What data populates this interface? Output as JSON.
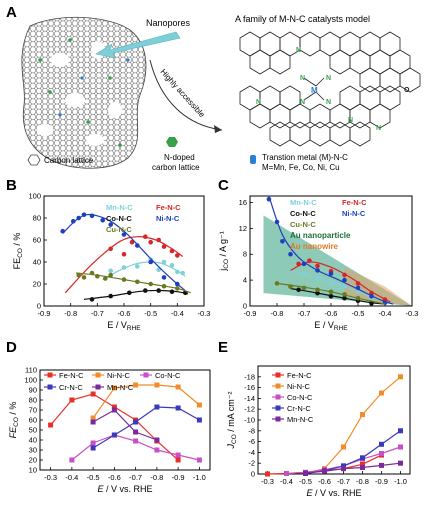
{
  "panel_a": {
    "letter": "A",
    "nanopores_label": "Nanopores",
    "model_title": "A family of M-N-C catalysts model",
    "arrow_label": "Highly accessible",
    "legend_carbon": "Carbon lattice",
    "legend_ndoped_1": "N-doped",
    "legend_ndoped_2": "carbon lattice",
    "legend_metal_1": "Transtion metal (M)-N-C",
    "legend_metal_2": "M=Mn, Fe, Co, Ni, Cu",
    "atom_n": "N",
    "atom_m": "M",
    "atom_o": "O",
    "colors": {
      "nitrogen": "#3aa14a",
      "metal": "#2a7fd0",
      "arrow": "#7ecfd8"
    }
  },
  "chart_data": [
    {
      "panel": "B",
      "type": "scatter",
      "xlabel_main": "E / V",
      "xlabel_sub": "RHE",
      "ylabel_main": "FE",
      "ylabel_sub": "CO",
      "ylabel_unit": " / %",
      "xlim": [
        -0.9,
        -0.3
      ],
      "ylim": [
        0,
        100
      ],
      "xticks": [
        "-0.9",
        "-0.8",
        "-0.7",
        "-0.6",
        "-0.5",
        "-0.4",
        "-0.3"
      ],
      "yticks": [
        "0",
        "20",
        "40",
        "60",
        "80",
        "100"
      ],
      "series": [
        {
          "name": "Mn-N-C",
          "color": "#7fd1d8",
          "x": [
            -0.65,
            -0.6,
            -0.55,
            -0.5,
            -0.47,
            -0.45,
            -0.42,
            -0.4,
            -0.38
          ],
          "y": [
            32,
            35,
            36,
            42,
            33,
            40,
            37,
            31,
            30
          ],
          "fit_x": [
            -0.68,
            -0.62,
            -0.56,
            -0.5,
            -0.45,
            -0.4,
            -0.37
          ],
          "fit_y": [
            24,
            32,
            38,
            40,
            38,
            32,
            27
          ]
        },
        {
          "name": "Fe-N-C",
          "color": "#d62728",
          "x": [
            -0.65,
            -0.6,
            -0.57,
            -0.52,
            -0.5,
            -0.47,
            -0.45,
            -0.42,
            -0.4
          ],
          "y": [
            52,
            47,
            58,
            63,
            58,
            60,
            54,
            50,
            46
          ],
          "fit_x": [
            -0.82,
            -0.72,
            -0.62,
            -0.55,
            -0.48,
            -0.42,
            -0.38
          ],
          "fit_y": [
            12,
            38,
            58,
            63,
            60,
            52,
            45
          ]
        },
        {
          "name": "Co-N-C",
          "color": "#111111",
          "x": [
            -0.72,
            -0.65,
            -0.58,
            -0.52,
            -0.47,
            -0.42,
            -0.37
          ],
          "y": [
            6,
            9,
            12,
            14,
            14,
            13,
            12
          ],
          "fit_x": [
            -0.75,
            -0.65,
            -0.55,
            -0.5,
            -0.45,
            -0.4,
            -0.36
          ],
          "fit_y": [
            6,
            9,
            13,
            14,
            14,
            13,
            11
          ]
        },
        {
          "name": "Ni-N-C",
          "color": "#1f3fbf",
          "x": [
            -0.83,
            -0.79,
            -0.77,
            -0.75,
            -0.72,
            -0.68,
            -0.65,
            -0.6,
            -0.55,
            -0.5,
            -0.45,
            -0.4
          ],
          "y": [
            68,
            77,
            80,
            83,
            82,
            78,
            74,
            65,
            55,
            40,
            26,
            20
          ],
          "fit_x": [
            -0.83,
            -0.78,
            -0.74,
            -0.7,
            -0.65,
            -0.6,
            -0.55,
            -0.5,
            -0.45,
            -0.4,
            -0.37
          ],
          "fit_y": [
            66,
            78,
            83,
            82,
            77,
            68,
            56,
            43,
            31,
            20,
            14
          ]
        },
        {
          "name": "Cu-N-C",
          "color": "#6b7a1f",
          "x": [
            -0.77,
            -0.75,
            -0.72,
            -0.7,
            -0.67,
            -0.65,
            -0.6,
            -0.55,
            -0.5,
            -0.45,
            -0.4
          ],
          "y": [
            28,
            26,
            30,
            27,
            25,
            28,
            24,
            22,
            20,
            18,
            16
          ],
          "fit_x": [
            -0.78,
            -0.7,
            -0.6,
            -0.5,
            -0.4,
            -0.35
          ],
          "fit_y": [
            30,
            28,
            24,
            20,
            16,
            12
          ]
        }
      ]
    },
    {
      "panel": "C",
      "type": "scatter",
      "xlabel_main": "E / V",
      "xlabel_sub": "RHE",
      "ylabel_main": "j",
      "ylabel_sub": "CO",
      "ylabel_unit": " / A g⁻¹",
      "xlim": [
        -0.9,
        -0.3
      ],
      "ylim": [
        0,
        17
      ],
      "xticks": [
        "-0.9",
        "-0.8",
        "-0.7",
        "-0.6",
        "-0.5",
        "-0.4",
        "-0.3"
      ],
      "yticks": [
        "0",
        "4",
        "8",
        "12",
        "16"
      ],
      "series": [
        {
          "name": "Mn-N-C",
          "color": "#7fd1d8",
          "x": [
            -0.7,
            -0.65,
            -0.6,
            -0.55,
            -0.5,
            -0.45,
            -0.4
          ],
          "y": [
            5,
            4.2,
            3.5,
            3,
            2.2,
            1.2,
            0.6
          ],
          "fit_x": [
            -0.75,
            -0.65,
            -0.55,
            -0.45,
            -0.38
          ],
          "fit_y": [
            5.5,
            4.3,
            3,
            1.4,
            0.4
          ]
        },
        {
          "name": "Fe-N-C",
          "color": "#d62728",
          "x": [
            -0.72,
            -0.68,
            -0.65,
            -0.6,
            -0.55,
            -0.5,
            -0.45,
            -0.4
          ],
          "y": [
            6.5,
            7,
            6.2,
            5.4,
            4.8,
            3.5,
            2,
            1
          ],
          "fit_x": [
            -0.75,
            -0.68,
            -0.6,
            -0.52,
            -0.45,
            -0.38
          ],
          "fit_y": [
            5.5,
            6.8,
            6,
            4.2,
            2.2,
            0.6
          ]
        },
        {
          "name": "Co-N-C",
          "color": "#111111",
          "x": [
            -0.72,
            -0.65,
            -0.6,
            -0.55,
            -0.5,
            -0.45
          ],
          "y": [
            2.5,
            2,
            1.5,
            1.2,
            0.8,
            0.4
          ],
          "fit_x": [
            -0.75,
            -0.65,
            -0.55,
            -0.45,
            -0.4
          ],
          "fit_y": [
            2.7,
            2,
            1.2,
            0.5,
            0.3
          ]
        },
        {
          "name": "Ni-N-C",
          "color": "#1f3fbf",
          "x": [
            -0.83,
            -0.8,
            -0.78,
            -0.75,
            -0.7,
            -0.65,
            -0.6,
            -0.55,
            -0.5,
            -0.45,
            -0.4
          ],
          "y": [
            16.5,
            13,
            10,
            8,
            6.5,
            5.5,
            5,
            4,
            2.8,
            1.5,
            0.5
          ],
          "fit_x": [
            -0.83,
            -0.78,
            -0.72,
            -0.65,
            -0.58,
            -0.5,
            -0.42,
            -0.37
          ],
          "fit_y": [
            17,
            11,
            7.5,
            5.5,
            4.2,
            2.6,
            1,
            0.3
          ]
        },
        {
          "name": "Cu-N-C",
          "color": "#6b7a1f",
          "x": [
            -0.8,
            -0.75,
            -0.7,
            -0.65,
            -0.6,
            -0.55,
            -0.5
          ],
          "y": [
            3.5,
            3,
            2.8,
            2.5,
            2.2,
            1.8,
            1.2
          ],
          "fit_x": [
            -0.8,
            -0.7,
            -0.6,
            -0.5,
            -0.4
          ],
          "fit_y": [
            3.5,
            2.9,
            2.2,
            1.2,
            0.3
          ]
        }
      ],
      "bands": [
        {
          "name": "Au nanoparticle",
          "color": "#2f9e7e",
          "upper_x": [
            -0.85,
            -0.3
          ],
          "upper_y": [
            14,
            0
          ],
          "lower_x": [
            -0.85,
            -0.3
          ],
          "lower_y": [
            2,
            0
          ]
        },
        {
          "name": "Au nanowire",
          "color": "#e5a36a",
          "upper_x": [
            -0.55,
            -0.4,
            -0.3
          ],
          "upper_y": [
            6,
            3,
            0
          ],
          "lower_x": [
            -0.55,
            -0.4,
            -0.3
          ],
          "lower_y": [
            1.5,
            0.5,
            0
          ]
        }
      ]
    },
    {
      "panel": "D",
      "type": "line",
      "xlabel_italic": "E",
      "xlabel_rest": " / V vs. RHE",
      "ylabel_italic": "FE",
      "ylabel_sub": "CO",
      "ylabel_unit": " / %",
      "xlim": [
        -1.05,
        -0.25
      ],
      "ylim": [
        10,
        110
      ],
      "reversed_x": true,
      "xticks": [
        "-0.3",
        "-0.4",
        "-0.5",
        "-0.6",
        "-0.7",
        "-0.8",
        "-0.9",
        "-1.0"
      ],
      "yticks": [
        "10",
        "20",
        "30",
        "40",
        "50",
        "60",
        "70",
        "80",
        "90",
        "100",
        "110"
      ],
      "series": [
        {
          "name": "Fe-N-C",
          "color": "#e8302a",
          "x": [
            -0.3,
            -0.4,
            -0.5,
            -0.6,
            -0.7,
            -0.8,
            -0.9
          ],
          "y": [
            55,
            80,
            86,
            73,
            60,
            39,
            20
          ]
        },
        {
          "name": "Ni-N-C",
          "color": "#f28c28",
          "x": [
            -0.5,
            -0.6,
            -0.7,
            -0.8,
            -0.9,
            -1.0
          ],
          "y": [
            62,
            92,
            95,
            95,
            93,
            75
          ]
        },
        {
          "name": "Co-N-C",
          "color": "#c84fc8",
          "x": [
            -0.4,
            -0.5,
            -0.6,
            -0.7,
            -0.8,
            -0.9,
            -1.0
          ],
          "y": [
            20,
            37,
            45,
            39,
            30,
            25,
            20
          ]
        },
        {
          "name": "Cr-N-C",
          "color": "#3a3ab8",
          "x": [
            -0.5,
            -0.6,
            -0.7,
            -0.8,
            -0.9,
            -1.0
          ],
          "y": [
            32,
            45,
            58,
            73,
            72,
            60
          ]
        },
        {
          "name": "Mn-N-C",
          "color": "#7a2a9a",
          "x": [
            -0.5,
            -0.6,
            -0.7,
            -0.8
          ],
          "y": [
            58,
            70,
            48,
            40
          ]
        }
      ]
    },
    {
      "panel": "E",
      "type": "line",
      "xlabel_italic": "E",
      "xlabel_rest": " / V vs. RHE",
      "ylabel_italic": "J",
      "ylabel_sub": "CO",
      "ylabel_unit": " / mA cm⁻²",
      "xlim": [
        -1.05,
        -0.25
      ],
      "ylim": [
        0,
        -20
      ],
      "reversed_x": true,
      "xticks": [
        "-0.3",
        "-0.4",
        "-0.5",
        "-0.6",
        "-0.7",
        "-0.8",
        "-0.9",
        "-1.0"
      ],
      "yticks": [
        "0",
        "-2",
        "-4",
        "-6",
        "-8",
        "-10",
        "-12",
        "-14",
        "-16",
        "-18"
      ],
      "series": [
        {
          "name": "Fe-N-C",
          "color": "#e8302a",
          "x": [
            -0.3,
            -0.4,
            -0.5,
            -0.6,
            -0.7,
            -0.8,
            -0.9
          ],
          "y": [
            0,
            -0.1,
            -0.3,
            -0.6,
            -1,
            -1.8,
            -3.5
          ]
        },
        {
          "name": "Ni-N-C",
          "color": "#f28c28",
          "x": [
            -0.5,
            -0.6,
            -0.7,
            -0.8,
            -0.9,
            -1.0
          ],
          "y": [
            -0.1,
            -1,
            -5,
            -11,
            -15,
            -18
          ]
        },
        {
          "name": "Co-N-C",
          "color": "#c84fc8",
          "x": [
            -0.4,
            -0.5,
            -0.6,
            -0.7,
            -0.8,
            -0.9,
            -1.0
          ],
          "y": [
            -0.1,
            -0.3,
            -0.8,
            -1.5,
            -2.8,
            -3.8,
            -5
          ]
        },
        {
          "name": "Cr-N-C",
          "color": "#3a3ab8",
          "x": [
            -0.5,
            -0.6,
            -0.7,
            -0.8,
            -0.9,
            -1.0
          ],
          "y": [
            -0.1,
            -0.6,
            -1.5,
            -3,
            -5.5,
            -8
          ]
        },
        {
          "name": "Mn-N-C",
          "color": "#7a2a9a",
          "x": [
            -0.5,
            -0.6,
            -0.7,
            -0.8,
            -0.9,
            -1.0
          ],
          "y": [
            -0.2,
            -0.5,
            -1,
            -1.2,
            -1.6,
            -2
          ]
        }
      ]
    }
  ]
}
